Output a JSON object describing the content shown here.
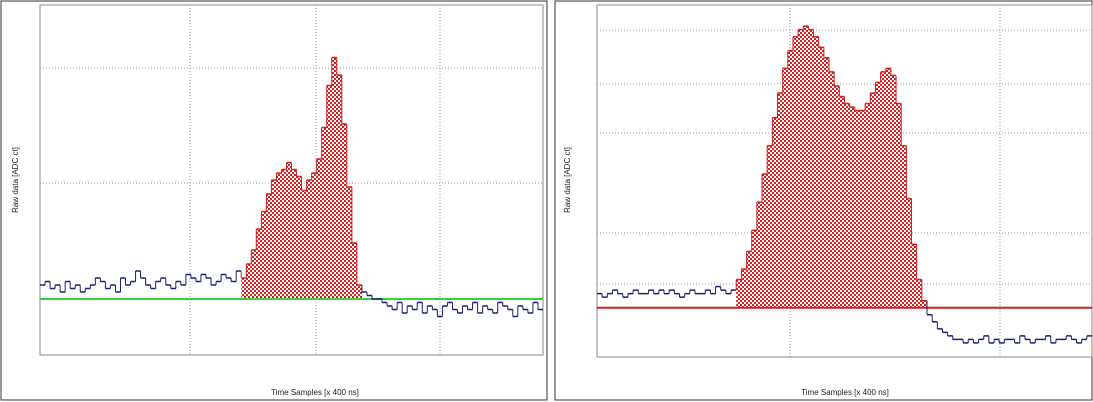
{
  "chart_data": [
    {
      "type": "line",
      "xlabel": "Time Samples [x 400 ns]",
      "ylabel": "Raw data [ADC ct]",
      "values": [
        20,
        21,
        19,
        20,
        18,
        21,
        19,
        20,
        18,
        19,
        20,
        22,
        21,
        19,
        20,
        18,
        22,
        20,
        21,
        24,
        22,
        20,
        19,
        21,
        22,
        20,
        19,
        21,
        20,
        23,
        22,
        21,
        23,
        22,
        20,
        21,
        23,
        22,
        21,
        24,
        22,
        26,
        30,
        36,
        41,
        46,
        50,
        52,
        53,
        55,
        53,
        51,
        47,
        50,
        52,
        56,
        65,
        77,
        85,
        80,
        66,
        48,
        32,
        20,
        18,
        17,
        16,
        16,
        15,
        14,
        13,
        15,
        12,
        14,
        13,
        15,
        12,
        14,
        13,
        11,
        14,
        15,
        13,
        12,
        14,
        13,
        15,
        12,
        14,
        13,
        12,
        15,
        14,
        13,
        11,
        14,
        13,
        12,
        15,
        13
      ],
      "ylim": [
        0,
        100
      ],
      "color": "#1a1f6e",
      "baseline": 16,
      "baseline_color": "#3ccf3c",
      "fill_range": [
        40,
        63
      ],
      "fill_color": "#d42020",
      "grid": true
    },
    {
      "type": "line",
      "xlabel": "Time Samples [x 400 ns]",
      "ylabel": "Raw data [ADC ct]",
      "values": [
        18,
        17,
        18,
        19,
        18,
        17,
        18,
        19,
        18,
        18,
        19,
        18,
        19,
        18,
        19,
        18,
        17,
        18,
        19,
        18,
        18,
        19,
        18,
        20,
        19,
        18,
        19,
        22,
        25,
        30,
        36,
        44,
        52,
        60,
        68,
        75,
        82,
        87,
        91,
        93,
        94,
        93,
        91,
        88,
        85,
        81,
        77,
        74,
        72,
        71,
        70,
        70,
        72,
        75,
        78,
        81,
        82,
        80,
        72,
        60,
        45,
        32,
        22,
        16,
        12,
        10,
        8,
        7,
        6,
        5,
        5,
        4,
        5,
        4,
        5,
        6,
        4,
        5,
        4,
        5,
        5,
        4,
        6,
        5,
        4,
        5,
        5,
        6,
        4,
        5,
        5,
        6,
        5,
        4,
        5,
        6
      ],
      "ylim": [
        0,
        100
      ],
      "color": "#1a1f6e",
      "baseline": 14,
      "baseline_color": "#d42020",
      "fill_range": [
        27,
        63
      ],
      "fill_color": "#d42020",
      "grid": true
    }
  ]
}
